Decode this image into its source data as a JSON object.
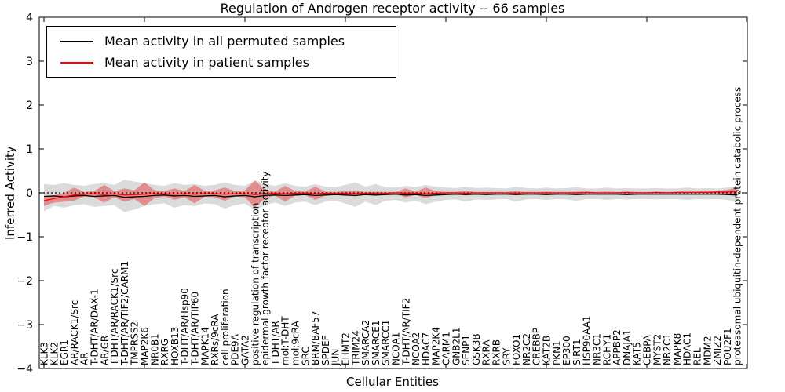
{
  "figure": {
    "title": "Regulation of Androgen receptor activity -- 66 samples",
    "xlabel": "Cellular Entities",
    "ylabel": "Inferred Activity"
  },
  "legend": {
    "items": [
      {
        "label": "Mean activity in all permuted samples",
        "color": "#000000"
      },
      {
        "label": "Mean activity in patient samples",
        "color": "#ff0000"
      }
    ]
  },
  "chart_data": {
    "type": "line",
    "title": "Regulation of Androgen receptor activity -- 66 samples",
    "xlabel": "Cellular Entities",
    "ylabel": "Inferred Activity",
    "ylim": [
      -4,
      4
    ],
    "yticks": [
      4,
      3,
      2,
      1,
      0,
      -1,
      -2,
      -3,
      -4
    ],
    "x_major_tick_every": 10,
    "grid": false,
    "legend_position": "upper left",
    "zero_line": {
      "y": 0,
      "style": "dashed",
      "color": "#000000"
    },
    "categories": [
      "KLK3",
      "KLK2",
      "EGR1",
      "AR/RACK1/Src",
      "AR",
      "T-DHT/AR/DAX-1",
      "AR/GR",
      "T-DHT/AR/RACK1/Src",
      "T-DHT/AR/TIF2/CARM1",
      "TMPRSS2",
      "MAP2K6",
      "NR0B1",
      "RXRG",
      "HOXB13",
      "T-DHT/AR/Hsp90",
      "T-DHT/AR/TIP60",
      "MAPK14",
      "RXRs/9cRA",
      "cell proliferation",
      "PDE9A",
      "GATA2",
      "positive regulation of transcription",
      "epidermal growth factor receptor activity",
      "T-DHT/AR",
      "mol:T-DHT",
      "mol:9cRA",
      "SRC",
      "BRM/BAF57",
      "SPDEF",
      "JUN",
      "EHMT2",
      "TRIM24",
      "SMARCA2",
      "SMARCE1",
      "SMARCC1",
      "NCOA1",
      "T-DHT/AR/TIF2",
      "NCOA2",
      "HDAC7",
      "MAP2K4",
      "CARM1",
      "GNB2L1",
      "SENP1",
      "GSK3B",
      "RXRA",
      "RXRB",
      "SRY",
      "FOXO1",
      "NR2C2",
      "CREBBP",
      "KAT2B",
      "PKN1",
      "EP300",
      "SIRT1",
      "HSP90AA1",
      "NR3C1",
      "RCHY1",
      "APPBP2",
      "DNAJA1",
      "KAT5",
      "CEBPA",
      "MYST2",
      "NR2C1",
      "MAPK8",
      "HDAC1",
      "REL",
      "MDM2",
      "ZMIZ2",
      "POU2F1",
      "proteasomal ubiquitin-dependent protein catabolic process"
    ],
    "series": [
      {
        "name": "mean-permuted",
        "label": "Mean activity in all permuted samples",
        "color": "#000000",
        "values": [
          -0.08,
          -0.07,
          -0.09,
          -0.07,
          -0.06,
          -0.08,
          -0.07,
          -0.06,
          -0.1,
          -0.09,
          -0.08,
          -0.06,
          -0.05,
          -0.07,
          -0.06,
          -0.08,
          -0.07,
          -0.06,
          -0.09,
          -0.07,
          -0.06,
          -0.09,
          -0.06,
          -0.05,
          -0.06,
          -0.05,
          -0.04,
          -0.06,
          -0.05,
          -0.04,
          -0.05,
          -0.06,
          -0.04,
          -0.05,
          -0.04,
          -0.03,
          -0.05,
          -0.04,
          -0.06,
          -0.05,
          -0.04,
          -0.03,
          -0.04,
          -0.03,
          -0.04,
          -0.03,
          -0.03,
          -0.04,
          -0.03,
          -0.03,
          -0.04,
          -0.03,
          -0.03,
          -0.04,
          -0.03,
          -0.03,
          -0.03,
          -0.03,
          -0.04,
          -0.03,
          -0.03,
          -0.03,
          -0.03,
          -0.03,
          -0.03,
          -0.03,
          -0.03,
          -0.03,
          -0.04,
          -0.05
        ]
      },
      {
        "name": "mean-patient",
        "label": "Mean activity in patient samples",
        "color": "#ff0000",
        "values": [
          -0.18,
          -0.13,
          -0.09,
          -0.05,
          -0.03,
          -0.02,
          -0.04,
          -0.02,
          -0.05,
          -0.04,
          -0.03,
          -0.02,
          -0.02,
          -0.03,
          -0.02,
          -0.03,
          -0.02,
          -0.02,
          -0.03,
          -0.02,
          -0.02,
          -0.04,
          -0.02,
          -0.01,
          -0.02,
          -0.01,
          -0.01,
          -0.02,
          -0.01,
          -0.01,
          -0.01,
          -0.02,
          -0.01,
          -0.01,
          -0.01,
          0.0,
          -0.01,
          -0.01,
          -0.02,
          -0.01,
          0.0,
          0.0,
          -0.01,
          0.0,
          0.0,
          0.0,
          0.0,
          -0.01,
          0.0,
          0.0,
          0.0,
          0.0,
          0.0,
          0.0,
          0.01,
          0.0,
          0.0,
          0.0,
          0.01,
          0.0,
          0.0,
          0.01,
          0.0,
          0.01,
          0.01,
          0.01,
          0.01,
          0.02,
          0.02,
          0.03
        ]
      }
    ],
    "bands": [
      {
        "name": "permuted-range",
        "color": "#b0b0b0",
        "opacity": 0.45,
        "upper": [
          0.2,
          0.18,
          0.22,
          0.18,
          0.16,
          0.2,
          0.22,
          0.18,
          0.3,
          0.26,
          0.22,
          0.18,
          0.16,
          0.22,
          0.18,
          0.2,
          0.16,
          0.18,
          0.24,
          0.18,
          0.16,
          0.28,
          0.2,
          0.16,
          0.22,
          0.16,
          0.14,
          0.2,
          0.14,
          0.13,
          0.18,
          0.24,
          0.14,
          0.2,
          0.13,
          0.12,
          0.16,
          0.13,
          0.18,
          0.14,
          0.12,
          0.11,
          0.14,
          0.11,
          0.12,
          0.11,
          0.1,
          0.14,
          0.11,
          0.1,
          0.12,
          0.1,
          0.11,
          0.13,
          0.1,
          0.1,
          0.12,
          0.1,
          0.11,
          0.1,
          0.1,
          0.11,
          0.1,
          0.1,
          0.12,
          0.1,
          0.11,
          0.1,
          0.12,
          0.14
        ],
        "lower": [
          -0.42,
          -0.3,
          -0.34,
          -0.28,
          -0.26,
          -0.32,
          -0.3,
          -0.28,
          -0.44,
          -0.38,
          -0.3,
          -0.26,
          -0.24,
          -0.34,
          -0.28,
          -0.3,
          -0.24,
          -0.26,
          -0.36,
          -0.28,
          -0.24,
          -0.4,
          -0.28,
          -0.22,
          -0.3,
          -0.22,
          -0.2,
          -0.28,
          -0.2,
          -0.18,
          -0.24,
          -0.32,
          -0.2,
          -0.28,
          -0.18,
          -0.16,
          -0.22,
          -0.18,
          -0.26,
          -0.2,
          -0.16,
          -0.15,
          -0.2,
          -0.15,
          -0.16,
          -0.15,
          -0.14,
          -0.2,
          -0.15,
          -0.14,
          -0.16,
          -0.14,
          -0.15,
          -0.18,
          -0.14,
          -0.14,
          -0.16,
          -0.14,
          -0.15,
          -0.14,
          -0.14,
          -0.15,
          -0.14,
          -0.14,
          -0.16,
          -0.14,
          -0.15,
          -0.14,
          -0.16,
          -0.2
        ]
      },
      {
        "name": "patient-range",
        "color": "#e84040",
        "opacity": 0.5,
        "upper": [
          -0.08,
          -0.06,
          0.0,
          0.12,
          0.02,
          0.04,
          0.18,
          0.04,
          0.1,
          0.06,
          0.24,
          0.06,
          0.04,
          0.1,
          0.04,
          0.18,
          0.04,
          0.06,
          0.12,
          0.04,
          0.06,
          0.28,
          0.08,
          0.03,
          0.16,
          0.04,
          0.03,
          0.14,
          0.03,
          0.02,
          0.04,
          0.06,
          0.02,
          0.03,
          0.02,
          0.02,
          0.1,
          0.03,
          0.12,
          0.04,
          0.02,
          0.02,
          0.05,
          0.02,
          0.02,
          0.02,
          0.02,
          0.04,
          0.02,
          0.02,
          0.03,
          0.02,
          0.02,
          0.03,
          0.03,
          0.02,
          0.03,
          0.02,
          0.03,
          0.02,
          0.02,
          0.03,
          0.02,
          0.03,
          0.03,
          0.03,
          0.04,
          0.05,
          0.07,
          0.12
        ],
        "lower": [
          -0.3,
          -0.22,
          -0.2,
          -0.18,
          -0.08,
          -0.1,
          -0.22,
          -0.1,
          -0.2,
          -0.14,
          -0.3,
          -0.12,
          -0.08,
          -0.16,
          -0.1,
          -0.24,
          -0.08,
          -0.1,
          -0.18,
          -0.08,
          -0.1,
          -0.34,
          -0.12,
          -0.06,
          -0.2,
          -0.06,
          -0.05,
          -0.16,
          -0.06,
          -0.04,
          -0.06,
          -0.08,
          -0.04,
          -0.05,
          -0.04,
          -0.03,
          -0.1,
          -0.05,
          -0.12,
          -0.05,
          -0.03,
          -0.03,
          -0.06,
          -0.03,
          -0.03,
          -0.03,
          -0.02,
          -0.05,
          -0.03,
          -0.02,
          -0.03,
          -0.02,
          -0.03,
          -0.04,
          -0.02,
          -0.02,
          -0.03,
          -0.02,
          -0.03,
          -0.02,
          -0.02,
          -0.02,
          -0.02,
          -0.02,
          -0.02,
          -0.02,
          -0.02,
          -0.02,
          -0.03,
          -0.06
        ]
      }
    ]
  }
}
